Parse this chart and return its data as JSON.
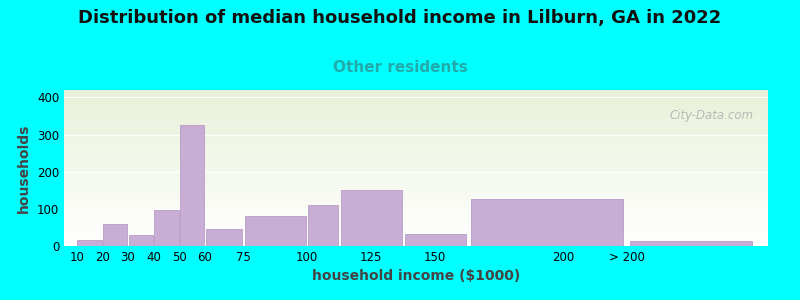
{
  "title": "Distribution of median household income in Lilburn, GA in 2022",
  "subtitle": "Other residents",
  "xlabel": "household income ($1000)",
  "ylabel": "households",
  "background_color": "#00FFFF",
  "plot_bg_top": "#e8f0d8",
  "plot_bg_bottom": "#ffffff",
  "bar_color": "#c8aed4",
  "bar_edge_color": "#b090c0",
  "bar_lefts": [
    10,
    20,
    30,
    40,
    50,
    60,
    75,
    100,
    112.5,
    137.5,
    162.5,
    225
  ],
  "bar_widths": [
    10,
    10,
    10,
    10,
    10,
    15,
    25,
    12.5,
    25,
    25,
    62.5,
    50
  ],
  "bar_heights": [
    15,
    60,
    30,
    97,
    325,
    45,
    80,
    110,
    152,
    33,
    127,
    13
  ],
  "xtick_positions": [
    10,
    20,
    30,
    40,
    50,
    60,
    75,
    100,
    125,
    150,
    200,
    225
  ],
  "xtick_labels": [
    "10",
    "20",
    "30",
    "40",
    "50",
    "60",
    "75",
    "100",
    "125",
    "150",
    "200",
    "> 200"
  ],
  "xlim": [
    5,
    280
  ],
  "ylim": [
    0,
    420
  ],
  "yticks": [
    0,
    100,
    200,
    300,
    400
  ],
  "watermark": "City-Data.com",
  "title_fontsize": 13,
  "subtitle_fontsize": 11,
  "axis_label_fontsize": 10
}
